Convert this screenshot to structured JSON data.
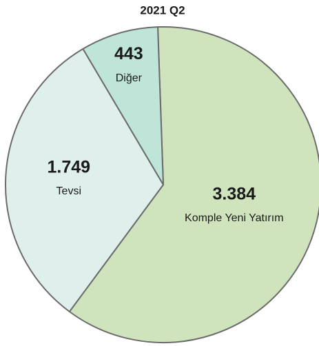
{
  "chart_data": {
    "type": "pie",
    "title": "2021 Q2",
    "categories": [
      "Komple Yeni Yatırım",
      "Tevsi",
      "Diğer"
    ],
    "values": [
      3384,
      1749,
      443
    ],
    "value_labels": [
      "3.384",
      "1.749",
      "443"
    ],
    "colors": [
      "#cfe4bd",
      "#dff0ec",
      "#bfe4d8"
    ]
  }
}
